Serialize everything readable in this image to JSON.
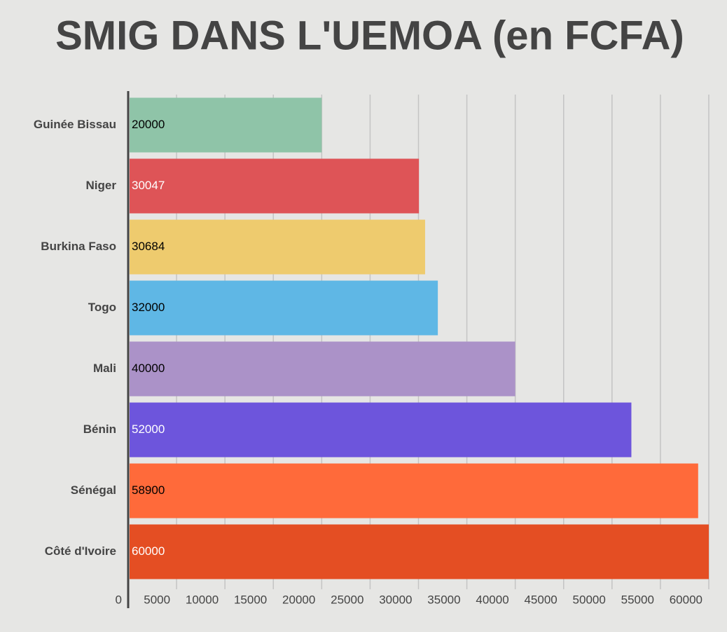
{
  "chart_data": {
    "type": "hbar",
    "title": "SMIG DANS L'UEMOA (en FCFA)",
    "categories": [
      "Guinée Bissau",
      "Niger",
      "Burkina Faso",
      "Togo",
      "Mali",
      "Bénin",
      "Sénégal",
      "Côté d'Ivoire"
    ],
    "values": [
      20000,
      30047,
      30684,
      32000,
      40000,
      52000,
      58900,
      60000
    ],
    "colors": [
      "#8fc4a8",
      "#de5457",
      "#eecb6e",
      "#5fb7e5",
      "#ab92c8",
      "#6d55dc",
      "#ff6a3a",
      "#e44e23"
    ],
    "label_colors": [
      "#000000",
      "#ffffff",
      "#000000",
      "#000000",
      "#000000",
      "#ffffff",
      "#000000",
      "#ffffff"
    ],
    "xlim": [
      0,
      60000
    ],
    "xticks": [
      0,
      5000,
      10000,
      15000,
      20000,
      25000,
      30000,
      35000,
      40000,
      45000,
      50000,
      55000,
      60000
    ],
    "grid": true
  }
}
